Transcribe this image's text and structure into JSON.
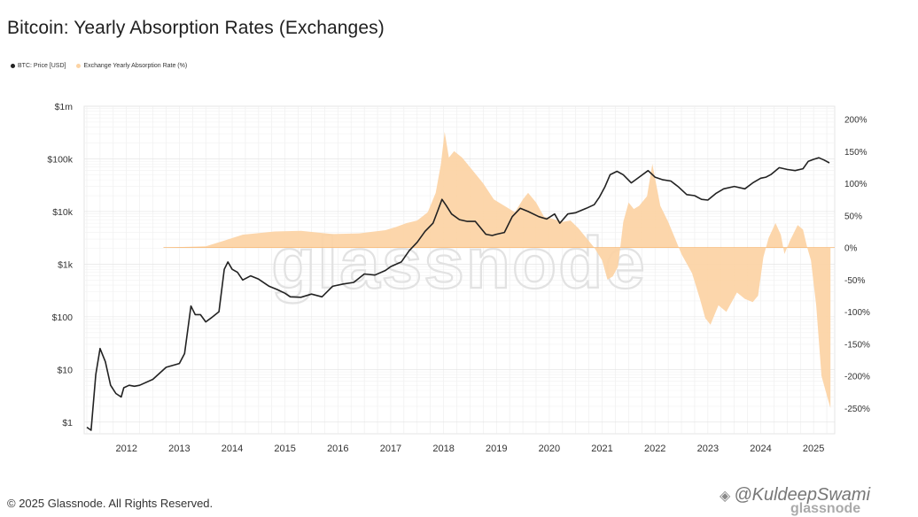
{
  "title": "Bitcoin: Yearly Absorption Rates (Exchanges)",
  "legend": [
    {
      "label": "BTC: Price [USD]",
      "color": "#222222"
    },
    {
      "label": "Exchange Yearly Absorption Rate (%)",
      "color": "#fcd3a4"
    }
  ],
  "watermark": "glassnode",
  "footer": {
    "copyright": "© 2025 Glassnode. All Rights Reserved.",
    "handle": "@KuldeepSwami",
    "handle_icon": "diamond-logo-icon",
    "handle_sub": "glassnode"
  },
  "colors": {
    "price": "#222222",
    "absorption": "#fcd3a4",
    "grid": "#ececec",
    "watermark": "#e2e2e2"
  },
  "chart_data": {
    "type": "line",
    "grid": true,
    "legend_position": "top-left",
    "x_ticks": [
      "2012",
      "2013",
      "2014",
      "2015",
      "2016",
      "2017",
      "2018",
      "2019",
      "2020",
      "2021",
      "2022",
      "2023",
      "2024",
      "2025"
    ],
    "xlim": [
      2011.2,
      2025.4
    ],
    "y_left": {
      "scale": "log",
      "ticks": [
        {
          "value": 1,
          "label": "$1"
        },
        {
          "value": 10,
          "label": "$10"
        },
        {
          "value": 100,
          "label": "$100"
        },
        {
          "value": 1000,
          "label": "$1k"
        },
        {
          "value": 10000,
          "label": "$10k"
        },
        {
          "value": 100000,
          "label": "$100k"
        },
        {
          "value": 1000000,
          "label": "$1m"
        }
      ],
      "ylim": [
        0.6,
        1000000
      ]
    },
    "y_right": {
      "scale": "linear",
      "ticks": [
        {
          "value": 200,
          "label": "200%"
        },
        {
          "value": 150,
          "label": "150%"
        },
        {
          "value": 100,
          "label": "100%"
        },
        {
          "value": 50,
          "label": "50%"
        },
        {
          "value": 0,
          "label": "0%"
        },
        {
          "value": -50,
          "label": "-50%"
        },
        {
          "value": -100,
          "label": "-100%"
        },
        {
          "value": -150,
          "label": "-150%"
        },
        {
          "value": -200,
          "label": "-200%"
        },
        {
          "value": -250,
          "label": "-250%"
        }
      ],
      "ylim": [
        -290,
        220
      ]
    },
    "series": [
      {
        "name": "BTC: Price [USD]",
        "axis": "left",
        "x": [
          2011.25,
          2011.33,
          2011.42,
          2011.5,
          2011.6,
          2011.7,
          2011.8,
          2011.9,
          2011.95,
          2012.05,
          2012.15,
          2012.25,
          2012.5,
          2012.75,
          2013.0,
          2013.1,
          2013.22,
          2013.3,
          2013.4,
          2013.5,
          2013.6,
          2013.75,
          2013.85,
          2013.92,
          2014.0,
          2014.1,
          2014.2,
          2014.35,
          2014.5,
          2014.7,
          2014.85,
          2015.0,
          2015.1,
          2015.3,
          2015.5,
          2015.7,
          2015.9,
          2016.1,
          2016.3,
          2016.5,
          2016.7,
          2016.9,
          2017.0,
          2017.2,
          2017.35,
          2017.5,
          2017.65,
          2017.8,
          2017.9,
          2017.97,
          2018.05,
          2018.15,
          2018.3,
          2018.45,
          2018.6,
          2018.8,
          2018.92,
          2019.0,
          2019.15,
          2019.3,
          2019.45,
          2019.6,
          2019.8,
          2019.95,
          2020.1,
          2020.2,
          2020.35,
          2020.5,
          2020.7,
          2020.85,
          2020.95,
          2021.05,
          2021.15,
          2021.28,
          2021.4,
          2021.55,
          2021.7,
          2021.87,
          2022.0,
          2022.15,
          2022.3,
          2022.45,
          2022.6,
          2022.75,
          2022.88,
          2023.0,
          2023.15,
          2023.3,
          2023.5,
          2023.7,
          2023.85,
          2024.0,
          2024.1,
          2024.2,
          2024.35,
          2024.5,
          2024.65,
          2024.8,
          2024.9,
          2025.0,
          2025.1,
          2025.2,
          2025.3
        ],
        "values": [
          0.8,
          0.7,
          8,
          25,
          14,
          5,
          3.5,
          3,
          4.5,
          5,
          4.8,
          5,
          6.5,
          11,
          13,
          20,
          160,
          110,
          110,
          80,
          95,
          125,
          800,
          1100,
          800,
          700,
          500,
          600,
          520,
          380,
          330,
          280,
          240,
          235,
          270,
          240,
          380,
          420,
          450,
          650,
          620,
          760,
          900,
          1100,
          1800,
          2600,
          4200,
          6000,
          11000,
          17000,
          13000,
          9000,
          7000,
          6500,
          6500,
          3700,
          3500,
          3700,
          4000,
          8000,
          11500,
          10000,
          8000,
          7200,
          9000,
          6000,
          9000,
          9500,
          11500,
          13500,
          19000,
          29000,
          50000,
          58000,
          50000,
          35000,
          45000,
          60000,
          45000,
          40000,
          38000,
          29000,
          21000,
          20000,
          17000,
          16500,
          22000,
          27000,
          30000,
          27000,
          35000,
          43000,
          45000,
          51000,
          68000,
          63000,
          60000,
          65000,
          90000,
          98000,
          105000,
          95000,
          84000
        ]
      },
      {
        "name": "Exchange Yearly Absorption Rate (%)",
        "axis": "right",
        "x": [
          2012.7,
          2013.5,
          2013.9,
          2014.2,
          2014.8,
          2015.3,
          2015.9,
          2016.4,
          2016.9,
          2017.1,
          2017.3,
          2017.5,
          2017.7,
          2017.85,
          2017.95,
          2018.02,
          2018.1,
          2018.2,
          2018.35,
          2018.55,
          2018.75,
          2018.95,
          2019.15,
          2019.35,
          2019.5,
          2019.6,
          2019.75,
          2019.9,
          2020.05,
          2020.25,
          2020.4,
          2020.55,
          2020.7,
          2020.85,
          2021.0,
          2021.1,
          2021.2,
          2021.3,
          2021.4,
          2021.5,
          2021.6,
          2021.7,
          2021.85,
          2021.95,
          2022.1,
          2022.25,
          2022.4,
          2022.5,
          2022.7,
          2022.85,
          2022.95,
          2023.05,
          2023.2,
          2023.35,
          2023.55,
          2023.7,
          2023.85,
          2023.95,
          2024.05,
          2024.15,
          2024.28,
          2024.38,
          2024.45,
          2024.55,
          2024.7,
          2024.8,
          2024.88,
          2024.95,
          2025.05,
          2025.15,
          2025.25,
          2025.32
        ],
        "values": [
          0,
          2,
          12,
          20,
          25,
          26,
          21,
          22,
          27,
          32,
          38,
          42,
          55,
          85,
          130,
          180,
          140,
          150,
          140,
          120,
          100,
          75,
          65,
          55,
          75,
          85,
          70,
          48,
          45,
          40,
          42,
          30,
          15,
          0,
          -20,
          -50,
          -45,
          -30,
          40,
          70,
          60,
          65,
          80,
          130,
          65,
          40,
          10,
          -10,
          -40,
          -80,
          -110,
          -120,
          -90,
          -100,
          -70,
          -80,
          -85,
          -75,
          -15,
          15,
          38,
          20,
          -10,
          10,
          35,
          28,
          0,
          -20,
          -90,
          -200,
          -230,
          -250
        ]
      }
    ]
  }
}
